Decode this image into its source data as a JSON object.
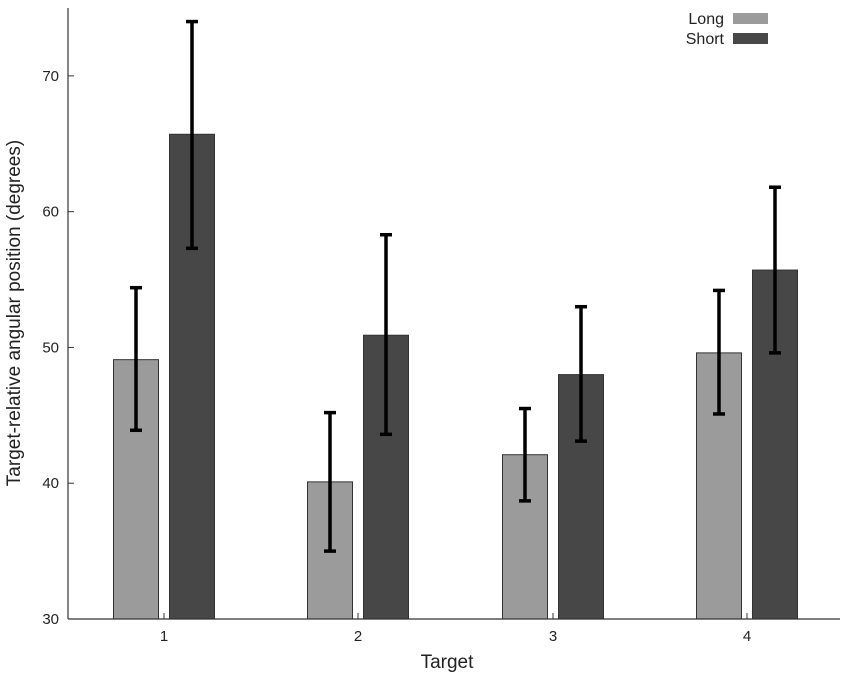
{
  "chart_data": {
    "type": "bar",
    "xlabel": "Target",
    "ylabel": "Target-relative angular position (degrees)",
    "categories": [
      "1",
      "2",
      "3",
      "4"
    ],
    "ylim": [
      30,
      75
    ],
    "yticks": [
      30,
      40,
      50,
      60,
      70
    ],
    "grid": false,
    "legend_position": "top-right",
    "series": [
      {
        "name": "Long",
        "color": "#9b9b9b",
        "values": [
          49.1,
          40.1,
          42.1,
          49.6
        ],
        "error_low": [
          43.9,
          35.0,
          38.7,
          45.1
        ],
        "error_high": [
          54.4,
          45.2,
          45.5,
          54.2
        ]
      },
      {
        "name": "Short",
        "color": "#474747",
        "values": [
          65.7,
          50.9,
          48.0,
          55.7
        ],
        "error_low": [
          57.3,
          43.6,
          43.1,
          49.6
        ],
        "error_high": [
          74.0,
          58.3,
          53.0,
          61.8
        ]
      }
    ]
  }
}
